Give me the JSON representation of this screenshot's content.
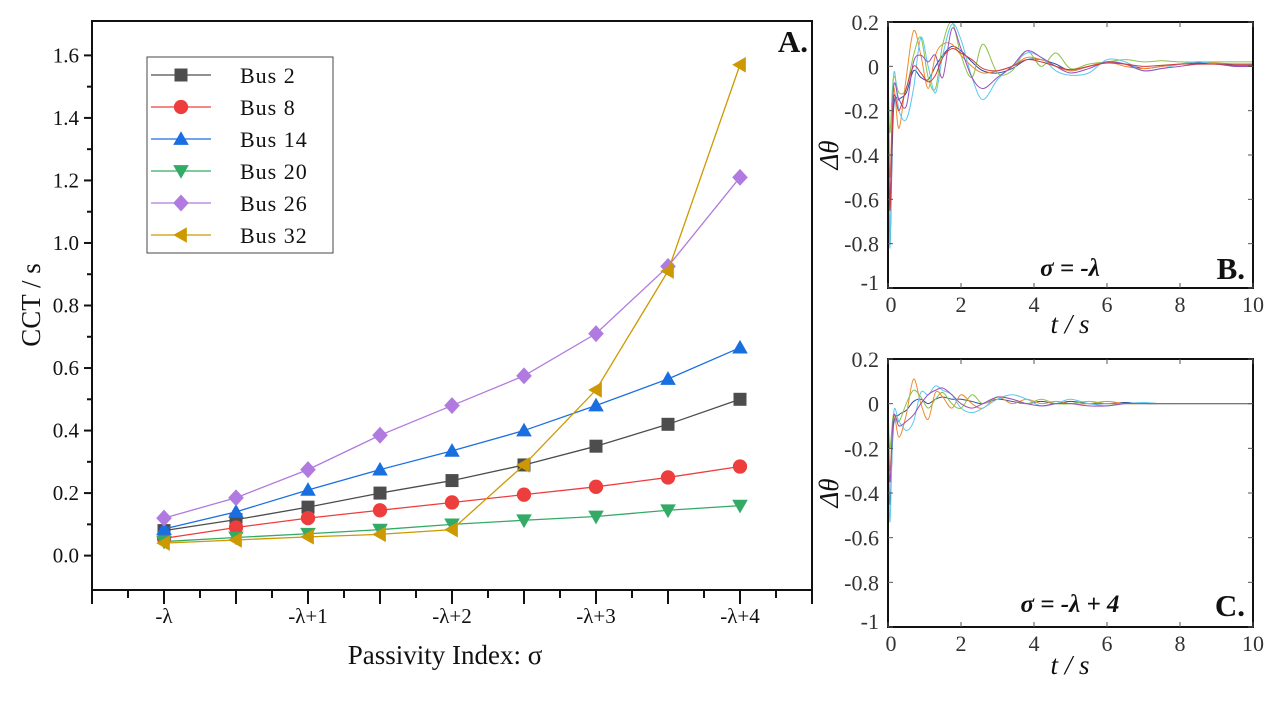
{
  "chart_data": [
    {
      "panel": "A.",
      "type": "line",
      "xlabel": "Passivity Index: σ",
      "ylabel": "CCT / s",
      "x": [
        0,
        0.5,
        1,
        1.5,
        2,
        2.5,
        3,
        3.5,
        4
      ],
      "x_tick_values": [
        0,
        1,
        2,
        3,
        4
      ],
      "x_tick_labels": [
        "-λ",
        "-λ+1",
        "-λ+2",
        "-λ+3",
        "-λ+4"
      ],
      "xlim": [
        -0.5,
        4.5
      ],
      "ylim": [
        -0.11,
        1.71
      ],
      "y_ticks": [
        0.0,
        0.2,
        0.4,
        0.6,
        0.8,
        1.0,
        1.2,
        1.4,
        1.6
      ],
      "y_tick_labels": [
        "0.0",
        "0.2",
        "0.4",
        "0.6",
        "0.8",
        "1.0",
        "1.2",
        "1.4",
        "1.6"
      ],
      "grid": false,
      "legend_position": "top-left",
      "series": [
        {
          "name": "Bus  2",
          "color": "#4d4d4d",
          "marker": "square",
          "values": [
            0.08,
            0.115,
            0.155,
            0.2,
            0.24,
            0.29,
            0.35,
            0.42,
            0.5
          ]
        },
        {
          "name": "Bus  8",
          "color": "#ee3d3d",
          "marker": "circle",
          "values": [
            0.055,
            0.09,
            0.12,
            0.145,
            0.17,
            0.195,
            0.22,
            0.25,
            0.285
          ]
        },
        {
          "name": "Bus  14",
          "color": "#1a6fe0",
          "marker": "triangle-up",
          "values": [
            0.085,
            0.14,
            0.21,
            0.275,
            0.335,
            0.4,
            0.48,
            0.565,
            0.665
          ]
        },
        {
          "name": "Bus  20",
          "color": "#33aa66",
          "marker": "triangle-down",
          "values": [
            0.045,
            0.058,
            0.07,
            0.083,
            0.1,
            0.113,
            0.125,
            0.145,
            0.16
          ]
        },
        {
          "name": "Bus  26",
          "color": "#b07ae0",
          "marker": "diamond",
          "values": [
            0.12,
            0.185,
            0.275,
            0.385,
            0.48,
            0.575,
            0.71,
            0.925,
            1.21
          ]
        },
        {
          "name": "Bus  32",
          "color": "#cc9900",
          "marker": "triangle-left",
          "values": [
            0.04,
            0.05,
            0.06,
            0.068,
            0.083,
            0.29,
            0.53,
            0.91,
            1.57
          ]
        }
      ]
    },
    {
      "panel": "B.",
      "type": "line",
      "annotation": "σ = -λ",
      "xlabel": "t / s",
      "ylabel": "Δθ",
      "xlim": [
        0,
        10
      ],
      "ylim": [
        -1,
        0.2
      ],
      "x_ticks": [
        0,
        2,
        4,
        6,
        8,
        10
      ],
      "x_tick_labels": [
        "0",
        "2",
        "4",
        "6",
        "8",
        "10"
      ],
      "y_ticks": [
        0.2,
        0,
        -0.2,
        -0.4,
        -0.6,
        -0.8,
        -1
      ],
      "y_tick_labels": [
        "0.2",
        "0",
        "-0.2",
        "-0.4",
        "-0.6",
        "-0.8",
        "-1"
      ],
      "t": [
        0,
        0.05,
        0.15,
        0.3,
        0.5,
        0.7,
        0.9,
        1.1,
        1.3,
        1.5,
        1.75,
        2,
        2.3,
        2.6,
        3,
        3.4,
        3.8,
        4.2,
        4.6,
        5,
        5.5,
        6,
        6.5,
        7,
        7.5,
        8,
        8.5,
        9,
        9.5,
        10
      ],
      "series": [
        {
          "color": "#2b4fa0",
          "values": [
            0,
            -0.8,
            -0.2,
            -0.15,
            -0.12,
            -0.02,
            -0.05,
            -0.06,
            0.0,
            0.05,
            0.09,
            0.07,
            0.02,
            -0.02,
            -0.03,
            -0.01,
            0.03,
            0.03,
            0.01,
            -0.02,
            0.0,
            0.02,
            0.01,
            -0.01,
            0.0,
            0.01,
            0.015,
            0.01,
            0.005,
            0.005
          ]
        },
        {
          "color": "#f08a30",
          "values": [
            0,
            -0.5,
            -0.1,
            -0.28,
            -0.05,
            0.16,
            0.05,
            -0.1,
            0.05,
            0.1,
            0.1,
            0.05,
            0.0,
            -0.03,
            -0.02,
            0.0,
            0.04,
            0.03,
            0.0,
            -0.02,
            0.0,
            0.02,
            0.0,
            -0.01,
            0.0,
            0.01,
            0.02,
            0.015,
            0.01,
            0.01
          ]
        },
        {
          "color": "#8cc24a",
          "values": [
            0,
            -0.3,
            -0.05,
            -0.12,
            -0.1,
            0.05,
            0.13,
            -0.05,
            -0.1,
            0.1,
            0.2,
            0.05,
            -0.05,
            0.1,
            -0.03,
            -0.02,
            0.07,
            0.0,
            0.06,
            -0.01,
            0.01,
            0.02,
            0.03,
            0.02,
            0.025,
            0.02,
            0.02,
            0.02,
            0.02,
            0.02
          ]
        },
        {
          "color": "#5bc8f0",
          "values": [
            0,
            -0.82,
            -0.05,
            -0.2,
            -0.24,
            -0.1,
            0.13,
            0.0,
            -0.12,
            0.05,
            0.19,
            0.12,
            -0.05,
            -0.15,
            -0.06,
            0.0,
            0.06,
            0.04,
            -0.02,
            -0.04,
            -0.03,
            0.03,
            0.02,
            -0.02,
            -0.01,
            0.01,
            0.02,
            0.01,
            0.0,
            0.0
          ]
        },
        {
          "color": "#9a4fb8",
          "values": [
            0,
            -0.6,
            -0.1,
            -0.15,
            -0.18,
            0.02,
            0.05,
            0.02,
            0.05,
            -0.05,
            0.17,
            0.08,
            -0.05,
            -0.1,
            -0.05,
            0.0,
            0.07,
            0.04,
            0.0,
            -0.03,
            -0.01,
            0.02,
            0.01,
            -0.02,
            -0.01,
            0.0,
            0.01,
            0.01,
            0.0,
            0.0
          ]
        },
        {
          "color": "#d23a3a",
          "values": [
            0,
            -0.65,
            -0.15,
            -0.2,
            -0.1,
            0.0,
            -0.03,
            -0.07,
            -0.04,
            0.04,
            0.08,
            0.06,
            0.03,
            -0.01,
            -0.02,
            0.0,
            0.03,
            0.02,
            0.0,
            -0.015,
            0.0,
            0.015,
            0.01,
            0.0,
            0.005,
            0.01,
            0.01,
            0.01,
            0.01,
            0.01
          ]
        }
      ]
    },
    {
      "panel": "C.",
      "type": "line",
      "annotation": "σ = -λ + 4",
      "xlabel": "t / s",
      "ylabel": "Δθ",
      "xlim": [
        0,
        10
      ],
      "ylim": [
        -1,
        0.2
      ],
      "x_ticks": [
        0,
        2,
        4,
        6,
        8,
        10
      ],
      "x_tick_labels": [
        "0",
        "2",
        "4",
        "6",
        "8",
        "10"
      ],
      "y_ticks": [
        0.2,
        0,
        -0.2,
        -0.4,
        -0.6,
        -0.8,
        -1
      ],
      "y_tick_labels": [
        "0.2",
        "0",
        "-0.2",
        "-0.4",
        "-0.6",
        "-0.8",
        "-1"
      ],
      "t": [
        0,
        0.05,
        0.15,
        0.3,
        0.5,
        0.7,
        0.9,
        1.1,
        1.3,
        1.5,
        1.75,
        2,
        2.3,
        2.6,
        3,
        3.4,
        3.8,
        4.2,
        4.6,
        5,
        5.5,
        6,
        6.5,
        7,
        7.5,
        8,
        8.5,
        9,
        9.5,
        10
      ],
      "series": [
        {
          "color": "#2b4fa0",
          "values": [
            0,
            -0.45,
            -0.1,
            -0.05,
            -0.03,
            0.01,
            0.02,
            0.0,
            0.02,
            0.03,
            0.02,
            0.02,
            0.01,
            0.0,
            0.02,
            0.01,
            0.0,
            0.01,
            0.0,
            0.01,
            0.0,
            0.0,
            0.005,
            0.0,
            0.0,
            0.0,
            0.0,
            0.0,
            0.0,
            0.0
          ]
        },
        {
          "color": "#f08a30",
          "values": [
            0,
            -0.3,
            -0.05,
            -0.15,
            -0.05,
            0.11,
            0.0,
            -0.07,
            0.05,
            0.03,
            -0.02,
            0.04,
            0.0,
            -0.02,
            0.03,
            0.0,
            0.02,
            0.0,
            0.01,
            0.0,
            0.0,
            0.01,
            0.0,
            0.0,
            0.0,
            0.0,
            0.0,
            0.0,
            0.0,
            0.0
          ]
        },
        {
          "color": "#5bc8f0",
          "values": [
            0,
            -0.53,
            -0.05,
            -0.08,
            -0.12,
            -0.08,
            0.05,
            0.04,
            0.08,
            0.06,
            0.04,
            -0.02,
            -0.04,
            -0.02,
            0.02,
            0.04,
            0.02,
            -0.01,
            0.0,
            0.02,
            0.0,
            -0.01,
            0.0,
            0.005,
            0.0,
            0.0,
            0.0,
            0.0,
            0.0,
            0.0
          ]
        },
        {
          "color": "#8cc24a",
          "values": [
            0,
            -0.2,
            -0.05,
            -0.08,
            0.0,
            0.06,
            0.03,
            -0.02,
            0.02,
            0.05,
            0.0,
            -0.02,
            0.04,
            0.0,
            0.03,
            0.02,
            0.0,
            0.02,
            0.0,
            0.0,
            0.01,
            0.0,
            0.0,
            0.0,
            0.0,
            0.0,
            0.0,
            0.0,
            0.0,
            0.0
          ]
        },
        {
          "color": "#9a4fb8",
          "values": [
            0,
            -0.35,
            -0.06,
            -0.1,
            -0.08,
            -0.05,
            0.0,
            0.04,
            0.06,
            0.07,
            0.04,
            0.0,
            -0.02,
            0.0,
            0.03,
            0.02,
            0.0,
            -0.01,
            0.0,
            0.0,
            -0.01,
            -0.01,
            0.0,
            0.0,
            0.0,
            0.0,
            0.0,
            0.0,
            0.0,
            0.0
          ]
        }
      ]
    }
  ]
}
